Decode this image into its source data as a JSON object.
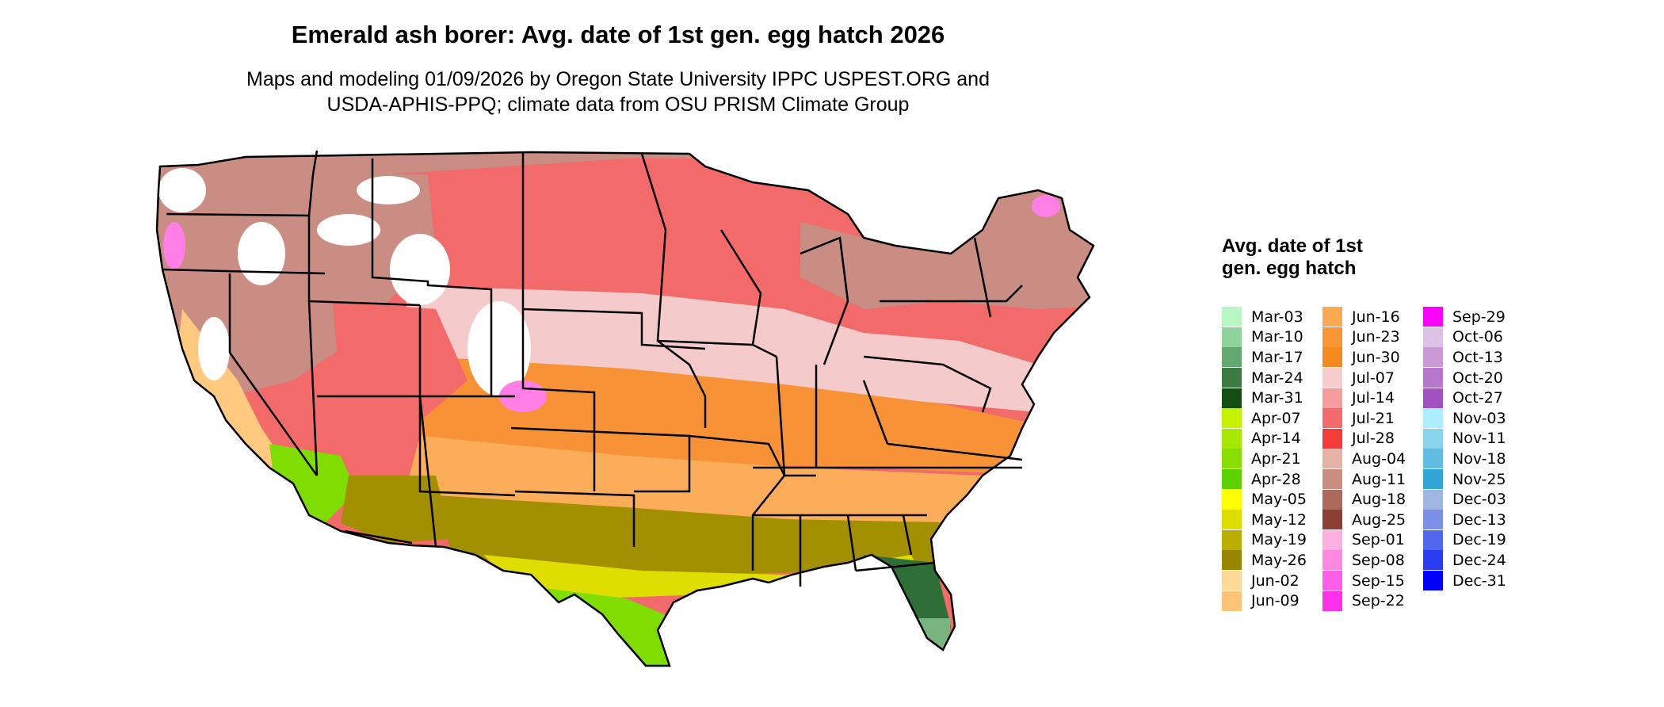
{
  "title": "Emerald ash borer: Avg. date of 1st gen. egg hatch 2026",
  "subtitle_line1": "Maps and modeling 01/09/2026 by Oregon State University IPPC USPEST.ORG and",
  "subtitle_line2": "USDA-APHIS-PPQ; climate data from OSU PRISM Climate Group",
  "legend": {
    "title": "Avg. date of 1st gen. egg hatch",
    "columns": [
      [
        {
          "label": "Mar-03",
          "color": "#b7f7c4"
        },
        {
          "label": "Mar-10",
          "color": "#8ed39c"
        },
        {
          "label": "Mar-17",
          "color": "#62a870"
        },
        {
          "label": "Mar-24",
          "color": "#3b7a42"
        },
        {
          "label": "Mar-31",
          "color": "#134f14"
        },
        {
          "label": "Apr-07",
          "color": "#c4f200"
        },
        {
          "label": "Apr-14",
          "color": "#a7e800"
        },
        {
          "label": "Apr-21",
          "color": "#86df00"
        },
        {
          "label": "Apr-28",
          "color": "#5ed200"
        },
        {
          "label": "May-05",
          "color": "#ffff00"
        },
        {
          "label": "May-12",
          "color": "#dddd00"
        },
        {
          "label": "May-19",
          "color": "#bbae00"
        },
        {
          "label": "May-26",
          "color": "#9a8500"
        },
        {
          "label": "Jun-02",
          "color": "#ffd89a"
        },
        {
          "label": "Jun-09",
          "color": "#ffc478"
        }
      ],
      [
        {
          "label": "Jun-16",
          "color": "#fbaa52"
        },
        {
          "label": "Jun-23",
          "color": "#f99634"
        },
        {
          "label": "Jun-30",
          "color": "#f78a1e"
        },
        {
          "label": "Jul-07",
          "color": "#f7cccc"
        },
        {
          "label": "Jul-14",
          "color": "#f59c9c"
        },
        {
          "label": "Jul-21",
          "color": "#f56a6a"
        },
        {
          "label": "Jul-28",
          "color": "#f53a3a"
        },
        {
          "label": "Aug-04",
          "color": "#e4b3a8"
        },
        {
          "label": "Aug-11",
          "color": "#ca8e80"
        },
        {
          "label": "Aug-18",
          "color": "#ad6a5c"
        },
        {
          "label": "Aug-25",
          "color": "#8c3f34"
        },
        {
          "label": "Sep-01",
          "color": "#ffb0e0"
        },
        {
          "label": "Sep-08",
          "color": "#ff88e0"
        },
        {
          "label": "Sep-15",
          "color": "#ff5ee8"
        },
        {
          "label": "Sep-22",
          "color": "#ff30ea"
        }
      ],
      [
        {
          "label": "Sep-29",
          "color": "#ff00ff"
        },
        {
          "label": "Oct-06",
          "color": "#dcc3e6"
        },
        {
          "label": "Oct-13",
          "color": "#c99ad6"
        },
        {
          "label": "Oct-20",
          "color": "#b577cc"
        },
        {
          "label": "Oct-27",
          "color": "#a052c0"
        },
        {
          "label": "Nov-03",
          "color": "#aaeeff"
        },
        {
          "label": "Nov-11",
          "color": "#88d4ec"
        },
        {
          "label": "Nov-18",
          "color": "#60bce0"
        },
        {
          "label": "Nov-25",
          "color": "#32a6d6"
        },
        {
          "label": "Dec-03",
          "color": "#a0b6e0"
        },
        {
          "label": "Dec-13",
          "color": "#7c90e6"
        },
        {
          "label": "Dec-19",
          "color": "#5068ee"
        },
        {
          "label": "Dec-24",
          "color": "#2c3cf2"
        },
        {
          "label": "Dec-31",
          "color": "#0000ff"
        }
      ]
    ]
  },
  "map": {
    "state_border_color": "#000000",
    "zone_colors": {
      "no_hatch": "#ffffff",
      "north_mountains": "#c98d83",
      "north_plains": "#f26a6a",
      "mid": "#f5caca",
      "central": "#f79236",
      "south_central": "#fcad5a",
      "gulf": "#a39000",
      "coast": "#dede00",
      "texas_south": "#7fdd00",
      "florida": "#2f6e36",
      "florida_tip": "#78b47e",
      "desert": "#ffc97f",
      "high_country": "#ff7fe6"
    }
  }
}
